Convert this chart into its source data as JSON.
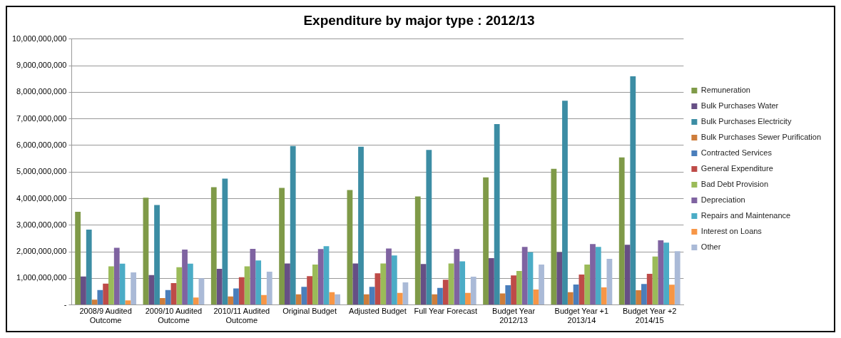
{
  "chart_data": {
    "type": "bar",
    "title": "Expenditure by major type : 2012/13",
    "categories": [
      "2008/9 Audited\nOutcome",
      "2009/10 Audited\nOutcome",
      "2010/11 Audited\nOutcome",
      "Original Budget",
      "Adjusted Budget",
      "Full Year Forecast",
      "Budget Year\n2012/13",
      "Budget Year +1\n2013/14",
      "Budget Year +2\n2014/15"
    ],
    "series": [
      {
        "name": "Remuneration",
        "color": "#7f9a48",
        "values": [
          3500000000,
          4030000000,
          4430000000,
          4400000000,
          4320000000,
          4080000000,
          4800000000,
          5120000000,
          5550000000
        ]
      },
      {
        "name": "Bulk Purchases Water",
        "color": "#664f85",
        "values": [
          1070000000,
          1120000000,
          1360000000,
          1560000000,
          1560000000,
          1540000000,
          1760000000,
          1980000000,
          2260000000
        ]
      },
      {
        "name": "Bulk Purchases Electricity",
        "color": "#3c8da4",
        "values": [
          2830000000,
          3760000000,
          4750000000,
          5980000000,
          5950000000,
          5830000000,
          6800000000,
          7680000000,
          8600000000
        ]
      },
      {
        "name": "Bulk Purchases Sewer Purification",
        "color": "#ce7d3b",
        "values": [
          200000000,
          260000000,
          320000000,
          400000000,
          400000000,
          400000000,
          430000000,
          480000000,
          550000000
        ]
      },
      {
        "name": "Contracted Services",
        "color": "#4a7ebb",
        "values": [
          560000000,
          560000000,
          620000000,
          680000000,
          680000000,
          640000000,
          740000000,
          770000000,
          790000000
        ]
      },
      {
        "name": "General Expenditure",
        "color": "#be4b48",
        "values": [
          800000000,
          820000000,
          1040000000,
          1080000000,
          1190000000,
          950000000,
          1110000000,
          1140000000,
          1170000000
        ]
      },
      {
        "name": "Bad Debt Provision",
        "color": "#9bbb59",
        "values": [
          1450000000,
          1420000000,
          1450000000,
          1520000000,
          1560000000,
          1560000000,
          1280000000,
          1520000000,
          1820000000
        ]
      },
      {
        "name": "Depreciation",
        "color": "#7f63a1",
        "values": [
          2150000000,
          2080000000,
          2110000000,
          2100000000,
          2120000000,
          2100000000,
          2180000000,
          2290000000,
          2430000000
        ]
      },
      {
        "name": "Repairs and Maintenance",
        "color": "#4bacc6",
        "values": [
          1550000000,
          1550000000,
          1670000000,
          2210000000,
          1860000000,
          1640000000,
          1980000000,
          2180000000,
          2340000000
        ]
      },
      {
        "name": "Interest on Loans",
        "color": "#f79646",
        "values": [
          170000000,
          280000000,
          370000000,
          480000000,
          450000000,
          450000000,
          580000000,
          660000000,
          760000000
        ]
      },
      {
        "name": "Other",
        "color": "#aabad7",
        "values": [
          1220000000,
          1000000000,
          1250000000,
          400000000,
          850000000,
          1060000000,
          1520000000,
          1730000000,
          2020000000
        ]
      }
    ],
    "ylim": [
      0,
      10000000000
    ],
    "yticks": [
      {
        "value": 0,
        "label": "-"
      },
      {
        "value": 1000000000,
        "label": "1,000,000,000"
      },
      {
        "value": 2000000000,
        "label": "2,000,000,000"
      },
      {
        "value": 3000000000,
        "label": "3,000,000,000"
      },
      {
        "value": 4000000000,
        "label": "4,000,000,000"
      },
      {
        "value": 5000000000,
        "label": "5,000,000,000"
      },
      {
        "value": 6000000000,
        "label": "6,000,000,000"
      },
      {
        "value": 7000000000,
        "label": "7,000,000,000"
      },
      {
        "value": 8000000000,
        "label": "8,000,000,000"
      },
      {
        "value": 9000000000,
        "label": "9,000,000,000"
      },
      {
        "value": 10000000000,
        "label": "10,000,000,000"
      }
    ],
    "grid": "y",
    "legend": "right"
  }
}
